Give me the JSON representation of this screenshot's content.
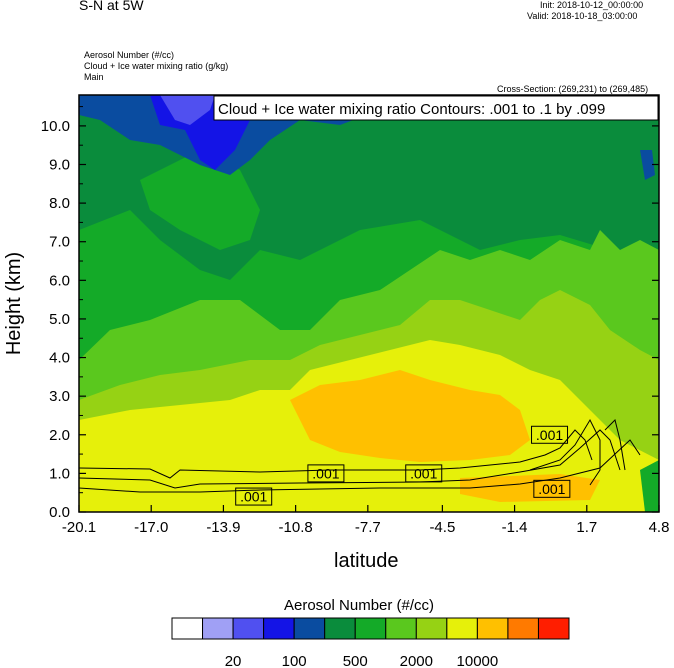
{
  "header": {
    "title": "S-N at 5W",
    "init": "Init: 2018-10-12_00:00:00",
    "valid": "Valid: 2018-10-18_03:00:00",
    "field_lines": [
      "Aerosol Number   (#/cc)",
      "Cloud + Ice water mixing ratio   (g/kg)",
      "Main"
    ],
    "cross_section": "Cross-Section: (269,231) to (269,485)"
  },
  "chart_data": {
    "type": "heatmap",
    "contour_label": "Cloud + Ice water mixing ratio Contours: .001 to .1 by .099",
    "xlabel": "latitude",
    "ylabel": "Height (km)",
    "xlim": [
      -20.1,
      4.8
    ],
    "ylim": [
      0.0,
      10.8
    ],
    "xticks": [
      "-20.1",
      "-17.0",
      "-13.9",
      "-10.8",
      "-7.7",
      "-4.5",
      "-1.4",
      "1.7",
      "4.8"
    ],
    "xtick_values": [
      -20.1,
      -17.0,
      -13.9,
      -10.8,
      -7.7,
      -4.5,
      -1.4,
      1.7,
      4.8
    ],
    "yticks": [
      "0.0",
      "1.0",
      "2.0",
      "3.0",
      "4.0",
      "5.0",
      "6.0",
      "7.0",
      "8.0",
      "9.0",
      "10.0"
    ],
    "ytick_values": [
      0,
      1,
      2,
      3,
      4,
      5,
      6,
      7,
      8,
      9,
      10
    ],
    "contour_labels": [
      {
        "text": ".001",
        "x": -9.5,
        "y": 1.0
      },
      {
        "text": ".001",
        "x": -5.3,
        "y": 1.0
      },
      {
        "text": ".001",
        "x": -12.6,
        "y": 0.4
      },
      {
        "text": ".001",
        "x": 0.1,
        "y": 2.0
      },
      {
        "text": ".001",
        "x": 0.2,
        "y": 0.6
      }
    ]
  },
  "colorbar": {
    "title": "Aerosol Number  (#/cc)",
    "colors": [
      "#ffffff",
      "#a0a0f5",
      "#5050f0",
      "#1414e6",
      "#0a4ca0",
      "#0a8c3c",
      "#14aa28",
      "#5ac81e",
      "#96d214",
      "#e6f00a",
      "#ffc000",
      "#ff7a00",
      "#ff1e00"
    ],
    "labels": [
      "20",
      "100",
      "500",
      "2000",
      "10000"
    ]
  }
}
